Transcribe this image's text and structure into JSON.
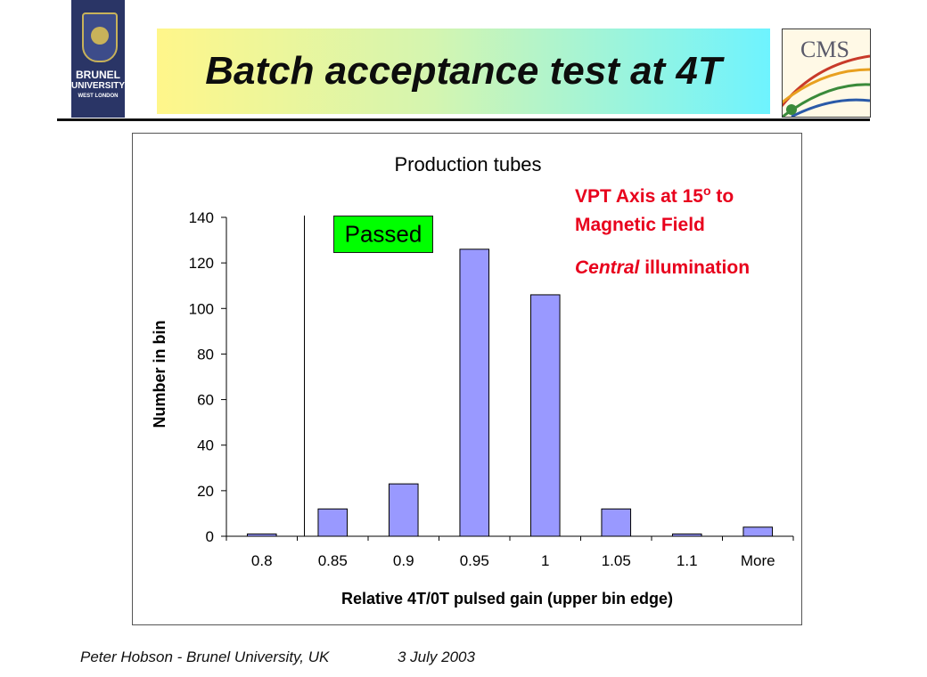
{
  "header": {
    "title": "Batch acceptance test at 4T",
    "logo_left": {
      "line1": "BRUNEL",
      "line2": "UNIVERSITY",
      "line3": "WEST LONDON"
    },
    "logo_right": {
      "text": "CMS"
    }
  },
  "chart_data": {
    "type": "bar",
    "title": "Production tubes",
    "xlabel": "Relative 4T/0T pulsed gain (upper bin edge)",
    "ylabel": "Number in bin",
    "categories": [
      "0.8",
      "0.85",
      "0.9",
      "0.95",
      "1",
      "1.05",
      "1.1",
      "More"
    ],
    "values": [
      1,
      12,
      23,
      126,
      106,
      12,
      1,
      4
    ],
    "ylim": [
      0,
      140
    ],
    "yticks": [
      0,
      20,
      40,
      60,
      80,
      100,
      120,
      140
    ],
    "grid": false,
    "bar_color": "#9999ff",
    "annotation_box": {
      "text": "Passed",
      "color": "#00ff00"
    },
    "cut_line_between": [
      "0.8",
      "0.85"
    ]
  },
  "annotations": {
    "line1_prefix": "VPT Axis at 15",
    "line1_sup": "o",
    "line1_suffix": " to",
    "line2": "Magnetic Field",
    "line3_italic": "Central",
    "line3_rest": " illumination",
    "color": "#e8001c"
  },
  "footer": {
    "author": "Peter Hobson - Brunel University, UK",
    "date": "3 July 2003"
  }
}
